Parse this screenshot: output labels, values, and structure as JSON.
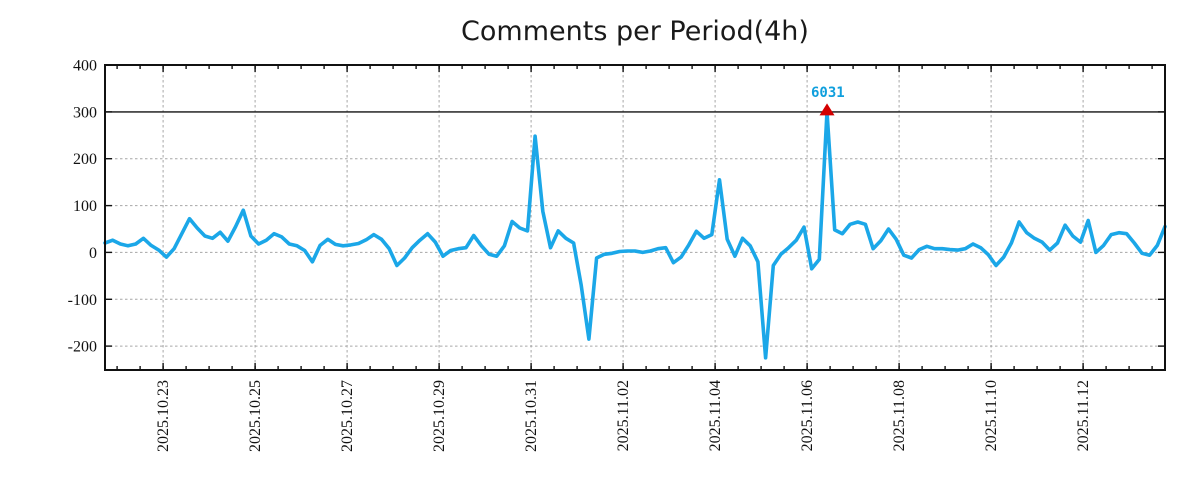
{
  "chart_data": {
    "type": "line",
    "title": "Comments per Period(4h)",
    "interval_hours": 4,
    "x_tick_labels": [
      "2025.10.23",
      "2025.10.25",
      "2025.10.27",
      "2025.10.29",
      "2025.10.31",
      "2025.11.02",
      "2025.11.04",
      "2025.11.06",
      "2025.11.08",
      "2025.11.10",
      "2025.11.12"
    ],
    "x_label_step_days": 2,
    "x_minor_tick_hours": 12,
    "y_ticks": [
      -200,
      -100,
      0,
      100,
      200,
      300,
      400
    ],
    "ylim": [
      -251,
      400
    ],
    "grid": {
      "show": true,
      "style": "dashed",
      "color": "#a6a6a6"
    },
    "threshold": {
      "value": 300,
      "style": "solid",
      "color": "#111111"
    },
    "series": [
      {
        "name": "comments-per-4h-period",
        "color": "#1ba7e8",
        "stroke_width": 3.6,
        "values": [
          20,
          26,
          18,
          14,
          18,
          30,
          15,
          5,
          -10,
          8,
          40,
          72,
          52,
          35,
          30,
          43,
          24,
          55,
          90,
          35,
          18,
          26,
          40,
          33,
          18,
          14,
          4,
          -20,
          15,
          28,
          17,
          14,
          16,
          19,
          27,
          38,
          28,
          8,
          -28,
          -12,
          10,
          26,
          40,
          22,
          -8,
          4,
          8,
          10,
          36,
          14,
          -4,
          -8,
          14,
          66,
          52,
          46,
          248,
          88,
          10,
          46,
          30,
          20,
          -70,
          -185,
          -12,
          -4,
          -2,
          2,
          3,
          3,
          0,
          3,
          8,
          10,
          -22,
          -10,
          16,
          45,
          30,
          38,
          155,
          28,
          -8,
          30,
          14,
          -20,
          -225,
          -28,
          -4,
          10,
          26,
          54,
          -35,
          -15,
          300,
          48,
          40,
          60,
          65,
          60,
          8,
          25,
          50,
          28,
          -6,
          -12,
          6,
          13,
          8,
          8,
          6,
          5,
          8,
          18,
          10,
          -5,
          -28,
          -10,
          20,
          65,
          42,
          30,
          22,
          5,
          20,
          58,
          35,
          22,
          68,
          0,
          15,
          38,
          42,
          40,
          20,
          -2,
          -6,
          15,
          55
        ]
      }
    ],
    "annotation": {
      "text": "6031",
      "color": "#0f9fdd",
      "marker": "triangle-up",
      "marker_color": "#d40000",
      "peak_index": 94,
      "clipped_at": 300
    }
  }
}
